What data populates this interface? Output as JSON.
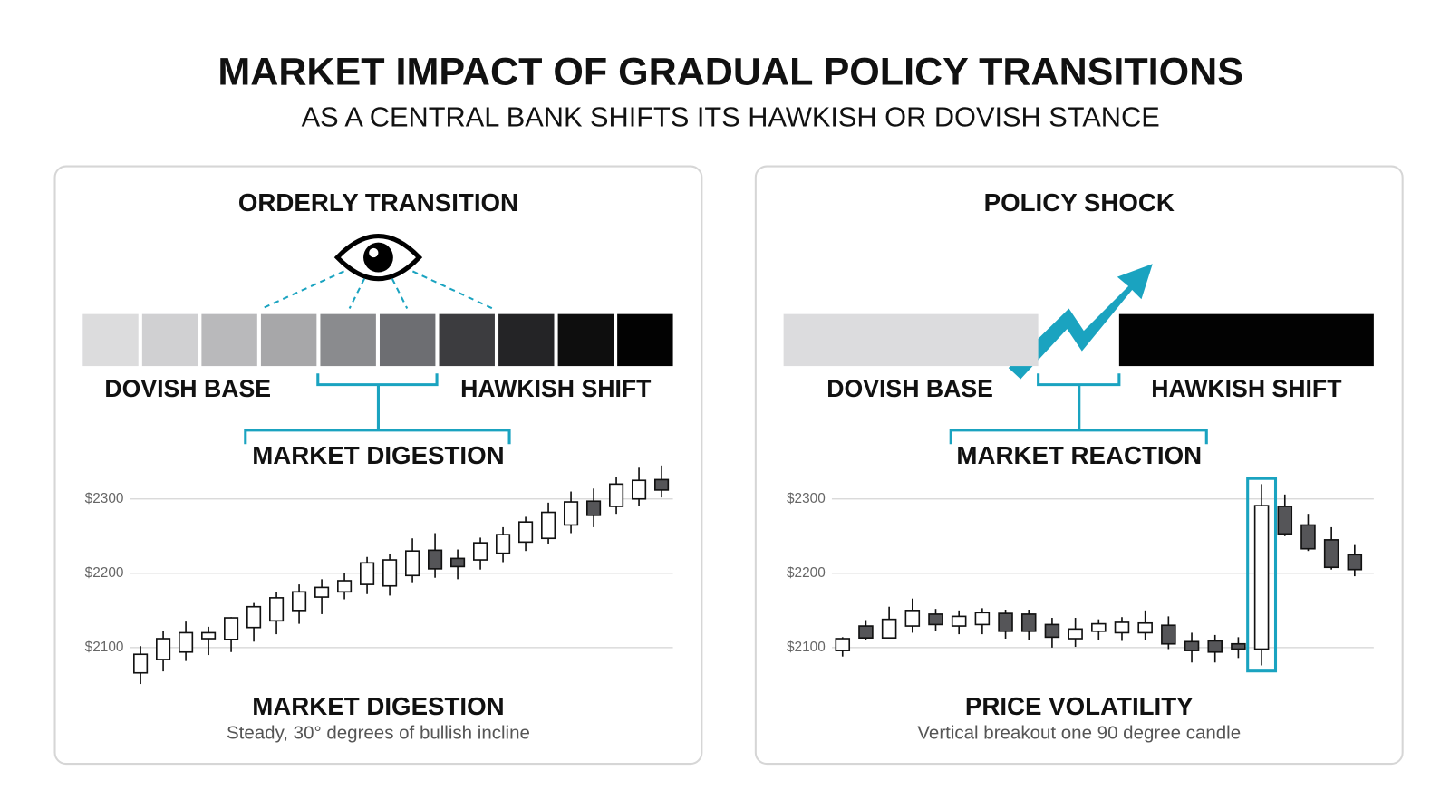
{
  "header": {
    "title": "MARKET IMPACT OF GRADUAL POLICY TRANSITIONS",
    "subtitle": "AS A CENTRAL BANK SHIFTS ITS HAWKISH OR DOVISH STANCE"
  },
  "panels": [
    {
      "title": "ORDERLY TRANSITION",
      "scale_colors": [
        "#dcdcdd",
        "#d0d0d2",
        "#b9b9bb",
        "#a7a7a9",
        "#8a8b8e",
        "#6d6e72",
        "#3c3c3f",
        "#242426",
        "#0e0e0e",
        "#020202"
      ],
      "left_label": "DOVISH BASE",
      "right_label": "HAWKISH SHIFT",
      "bracket_label": "MARKET DIGESTION",
      "footer_title": "MARKET DIGESTION",
      "footer_text": "Steady, 30° degrees of bullish incline"
    },
    {
      "title": "POLICY SHOCK",
      "scale_colors": [
        "#dcdcde",
        "#020202"
      ],
      "left_label": "DOVISH BASE",
      "right_label": "HAWKISH SHIFT",
      "bracket_label": "MARKET REACTION",
      "footer_title": "PRICE VOLATILITY",
      "footer_text": "Vertical breakout one 90 degree candle"
    }
  ],
  "chart_data": [
    {
      "type": "candlestick",
      "ylim": [
        2050,
        2350
      ],
      "grid": true,
      "up_color": "#ffffff",
      "down_color": "#555558",
      "yticks": [
        {
          "value": 2100,
          "label": "$2100"
        },
        {
          "value": 2200,
          "label": "$2200"
        },
        {
          "value": 2300,
          "label": "$2300"
        }
      ],
      "open": [
        2066,
        2084,
        2094,
        2112,
        2111,
        2127,
        2136,
        2150,
        2168,
        2175,
        2185,
        2183,
        2197,
        2231,
        2220,
        2218,
        2227,
        2242,
        2247,
        2265,
        2297,
        2290,
        2300,
        2326
      ],
      "high": [
        2102,
        2122,
        2135,
        2128,
        2141,
        2160,
        2175,
        2185,
        2192,
        2200,
        2222,
        2226,
        2247,
        2254,
        2232,
        2248,
        2262,
        2276,
        2295,
        2310,
        2314,
        2330,
        2342,
        2345
      ],
      "low": [
        2051,
        2068,
        2082,
        2090,
        2094,
        2108,
        2118,
        2132,
        2145,
        2165,
        2172,
        2170,
        2188,
        2194,
        2192,
        2205,
        2215,
        2230,
        2240,
        2254,
        2262,
        2280,
        2290,
        2302
      ],
      "close": [
        2091,
        2112,
        2120,
        2120,
        2140,
        2155,
        2167,
        2175,
        2181,
        2190,
        2214,
        2218,
        2230,
        2206,
        2209,
        2241,
        2252,
        2269,
        2282,
        2296,
        2278,
        2320,
        2325,
        2312
      ]
    },
    {
      "type": "candlestick",
      "ylim": [
        2050,
        2350
      ],
      "grid": true,
      "up_color": "#ffffff",
      "down_color": "#555558",
      "yticks": [
        {
          "value": 2100,
          "label": "$2100"
        },
        {
          "value": 2200,
          "label": "$2200"
        },
        {
          "value": 2300,
          "label": "$2300"
        }
      ],
      "open": [
        2096,
        2129,
        2113,
        2129,
        2145,
        2129,
        2131,
        2146,
        2145,
        2131,
        2112,
        2122,
        2120,
        2120,
        2130,
        2108,
        2109,
        2105,
        2098,
        2290,
        2265,
        2245,
        2225
      ],
      "high": [
        2114,
        2137,
        2155,
        2166,
        2152,
        2150,
        2153,
        2151,
        2151,
        2140,
        2140,
        2138,
        2141,
        2150,
        2142,
        2120,
        2117,
        2114,
        2320,
        2306,
        2280,
        2262,
        2238
      ],
      "low": [
        2088,
        2110,
        2112,
        2120,
        2123,
        2118,
        2118,
        2112,
        2110,
        2100,
        2101,
        2110,
        2109,
        2110,
        2098,
        2080,
        2080,
        2086,
        2076,
        2250,
        2230,
        2205,
        2196
      ],
      "close": [
        2112,
        2113,
        2138,
        2150,
        2131,
        2142,
        2147,
        2122,
        2122,
        2114,
        2125,
        2132,
        2134,
        2133,
        2105,
        2096,
        2094,
        2098,
        2291,
        2253,
        2233,
        2208,
        2205
      ]
    }
  ]
}
